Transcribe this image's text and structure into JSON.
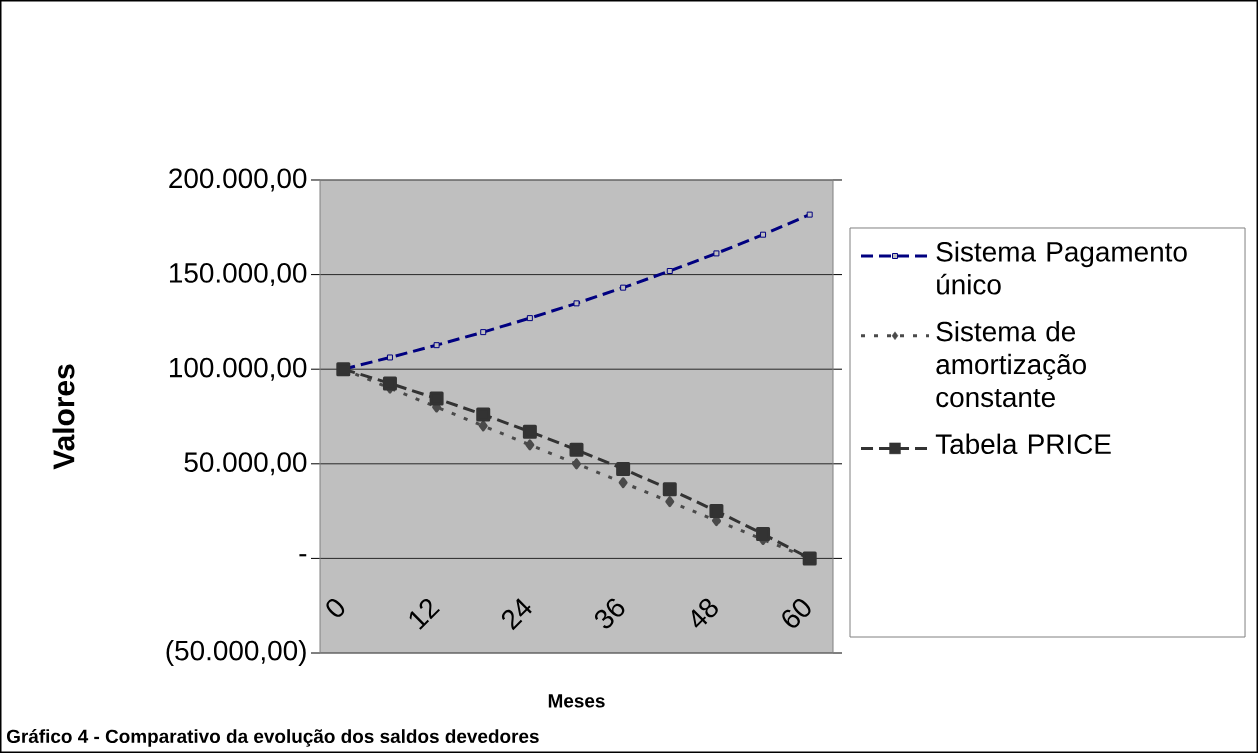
{
  "chart_data": {
    "type": "line",
    "xlabel": "Meses",
    "ylabel": "Valores",
    "annotations": [
      "Gráfico 4 - Comparativo da evolução dos saldos devedores"
    ],
    "categories": [
      "0",
      null,
      "12",
      null,
      "24",
      null,
      "36",
      null,
      "48",
      null,
      "60"
    ],
    "series": [
      {
        "name": "Sistema Pagamento único",
        "color": "#000080",
        "marker": "square",
        "line_style": "dashed",
        "values": [
          100000,
          106200,
          112700,
          119600,
          127000,
          134800,
          143100,
          151900,
          161200,
          171100,
          181700
        ]
      },
      {
        "name": "Sistema de amortização constante",
        "color": "#4a4a4a",
        "marker": "diamond",
        "line_style": "dotted",
        "values": [
          100000,
          90000,
          80000,
          70000,
          60000,
          50000,
          40000,
          30000,
          20000,
          10000,
          0
        ]
      },
      {
        "name": "Tabela PRICE",
        "color": "#333333",
        "marker": "square",
        "line_style": "dashed",
        "values": [
          100000,
          92500,
          84500,
          76000,
          67000,
          57400,
          47300,
          36500,
          25000,
          12900,
          0
        ]
      }
    ],
    "ylim": [
      -50000,
      200000
    ],
    "yticks": [
      {
        "value": -50000,
        "label": "(50.000,00)"
      },
      {
        "value": 0,
        "label": "-"
      },
      {
        "value": 50000,
        "label": "50.000,00"
      },
      {
        "value": 100000,
        "label": "100.000,00"
      },
      {
        "value": 150000,
        "label": "150.000,00"
      },
      {
        "value": 200000,
        "label": "200.000,00"
      }
    ],
    "grid": "y",
    "legend": "right"
  }
}
